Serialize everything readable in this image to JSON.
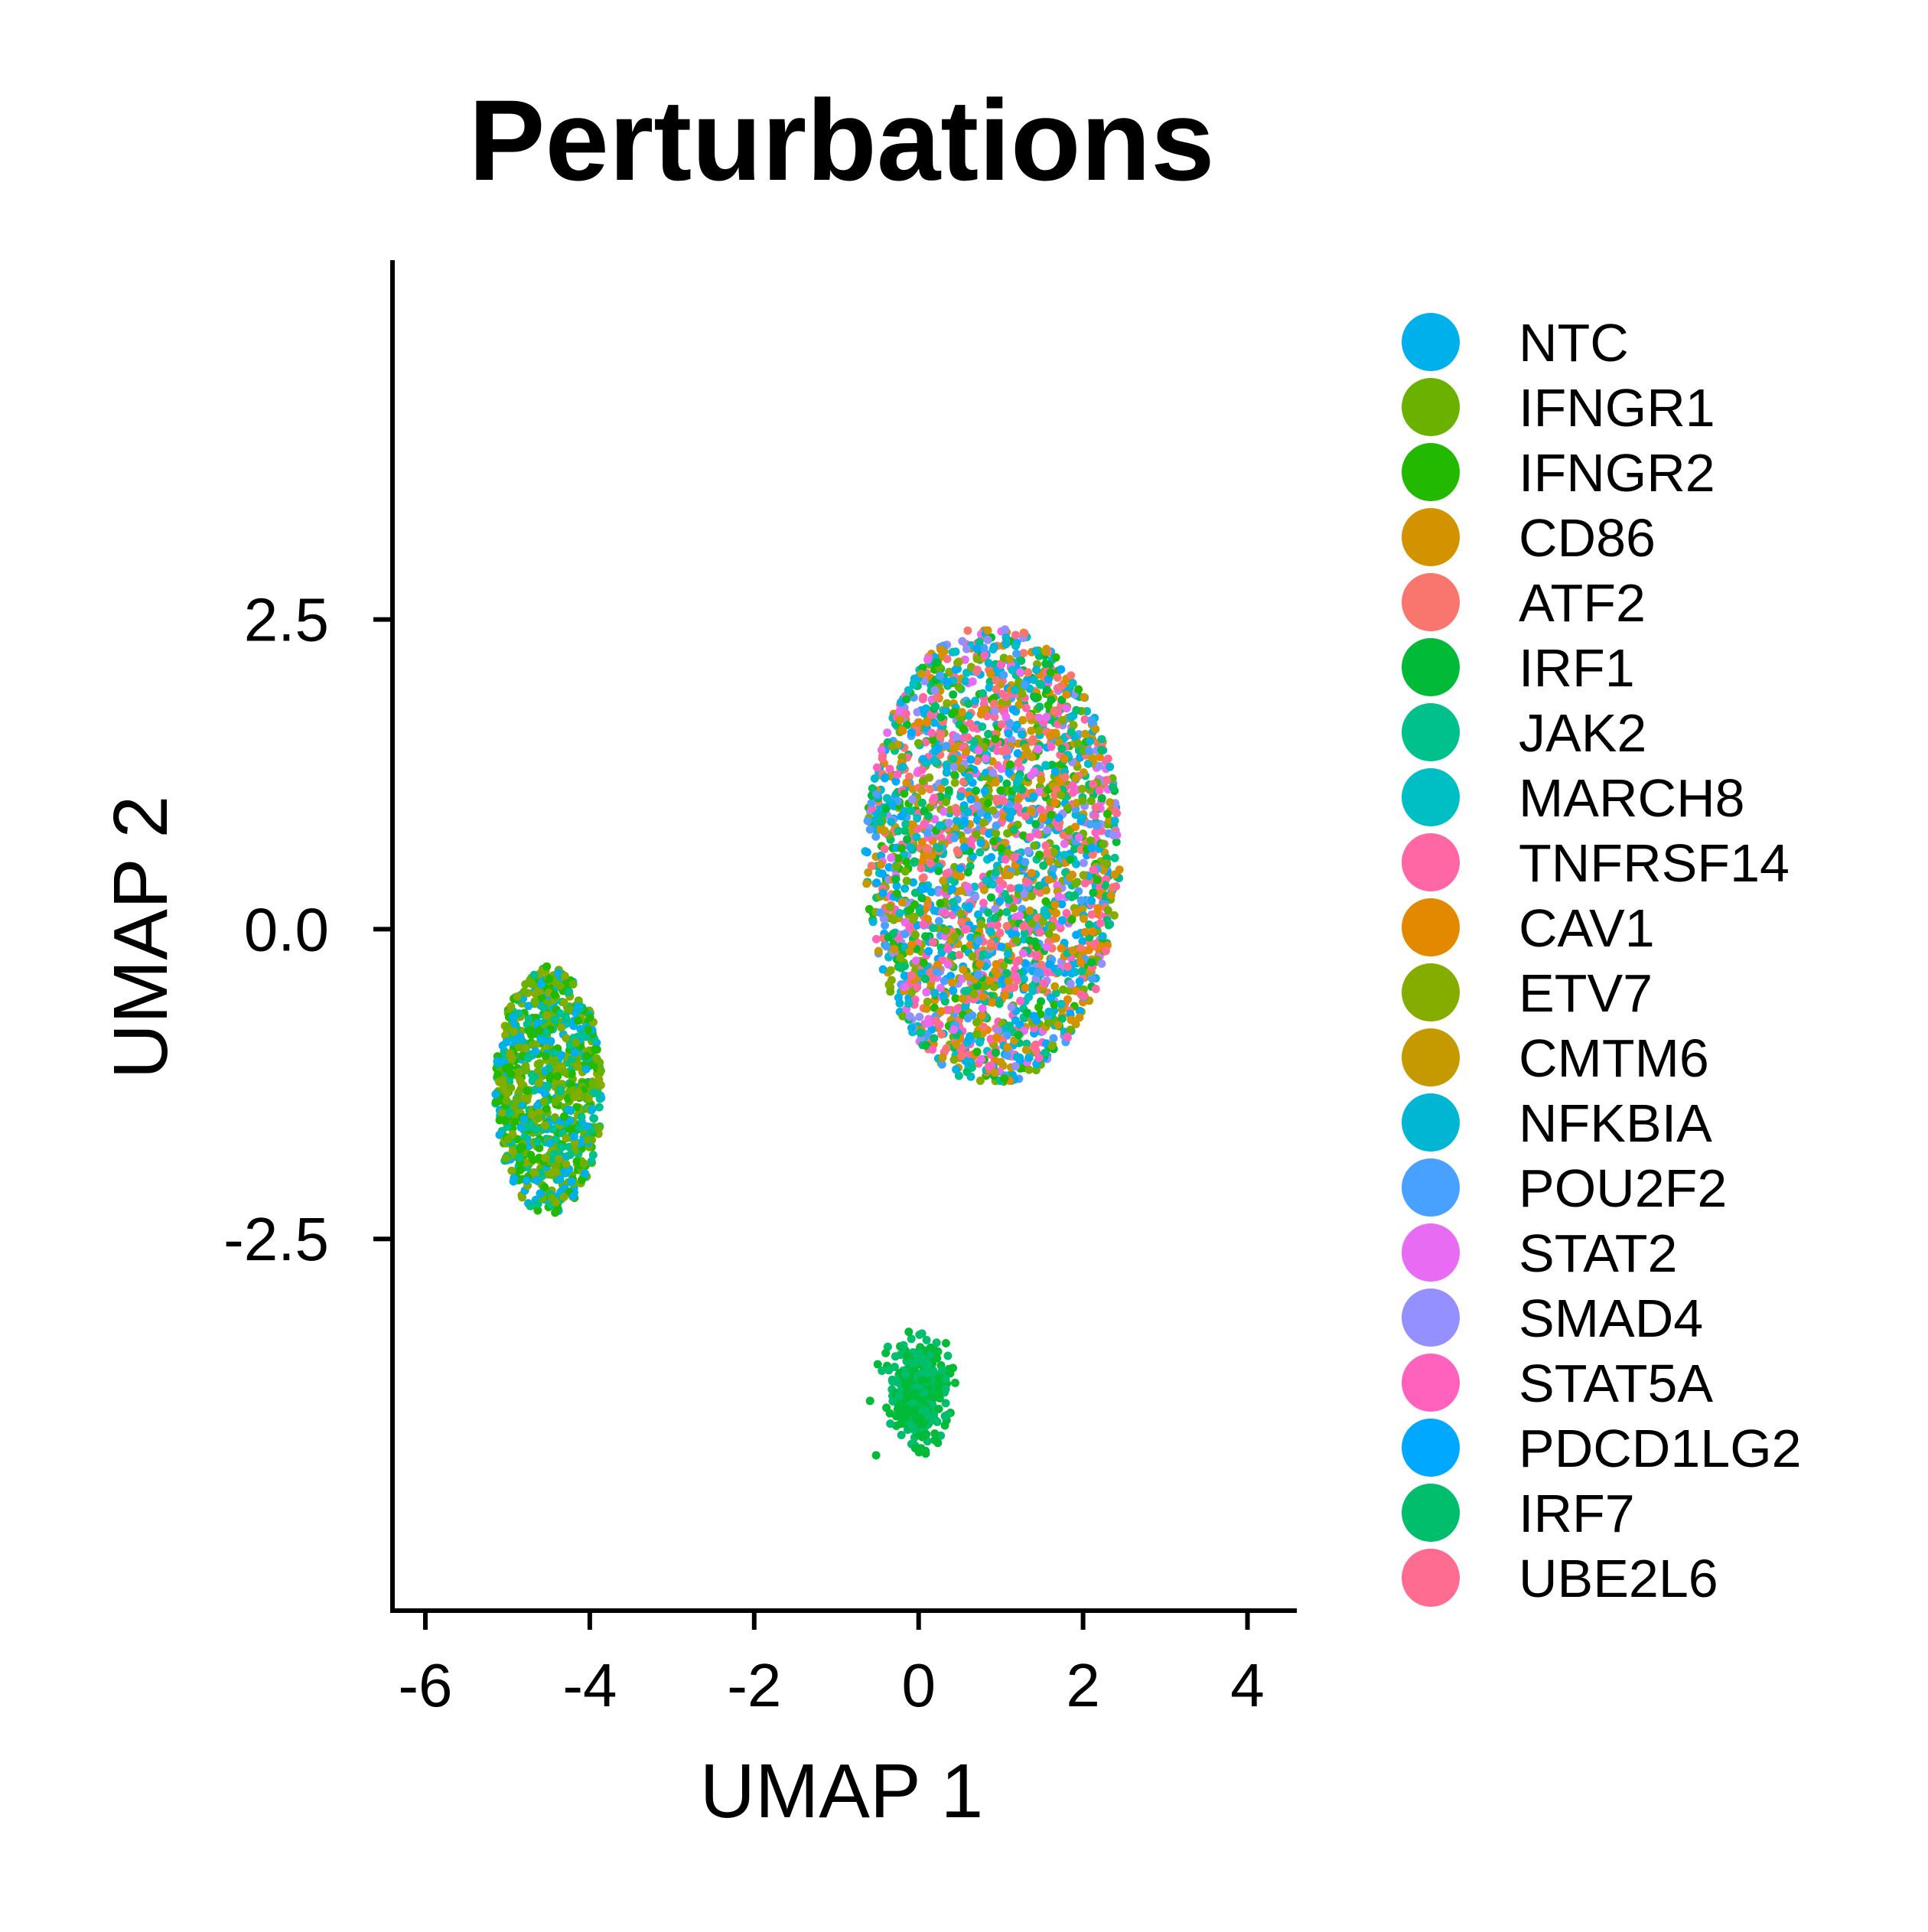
{
  "chart_data": {
    "type": "scatter",
    "title": "Perturbations",
    "xlabel": "UMAP 1",
    "ylabel": "UMAP 2",
    "xlim": [
      -6.4,
      4.6
    ],
    "ylim": [
      -5.5,
      5.4
    ],
    "xticks": [
      -6,
      -4,
      -2,
      0,
      2,
      4
    ],
    "xtick_labels": [
      "-6",
      "-4",
      "-2",
      "0",
      "2",
      "4"
    ],
    "yticks": [
      -2.5,
      0.0,
      2.5
    ],
    "ytick_labels": [
      "-2.5",
      "0.0",
      "2.5"
    ],
    "grid": false,
    "legend_position": "right",
    "series": [
      {
        "name": "NTC",
        "color": "#00B0EB"
      },
      {
        "name": "IFNGR1",
        "color": "#6BB100"
      },
      {
        "name": "IFNGR2",
        "color": "#22B900"
      },
      {
        "name": "CD86",
        "color": "#D39200"
      },
      {
        "name": "ATF2",
        "color": "#F8766D"
      },
      {
        "name": "IRF1",
        "color": "#00BA38"
      },
      {
        "name": "JAK2",
        "color": "#00C08B"
      },
      {
        "name": "MARCH8",
        "color": "#00BFC4"
      },
      {
        "name": "TNFRSF14",
        "color": "#FF67A4"
      },
      {
        "name": "CAV1",
        "color": "#E38900"
      },
      {
        "name": "ETV7",
        "color": "#85AD00"
      },
      {
        "name": "CMTM6",
        "color": "#C49A00"
      },
      {
        "name": "NFKBIA",
        "color": "#00B6D3"
      },
      {
        "name": "POU2F2",
        "color": "#49A1FF"
      },
      {
        "name": "STAT2",
        "color": "#E76BF3"
      },
      {
        "name": "SMAD4",
        "color": "#9590FF"
      },
      {
        "name": "STAT5A",
        "color": "#FF62BC"
      },
      {
        "name": "PDCD1LG2",
        "color": "#00A9FF"
      },
      {
        "name": "IRF7",
        "color": "#00BE6C"
      },
      {
        "name": "UBE2L6",
        "color": "#FF6C91"
      }
    ],
    "clusters": [
      {
        "label": "main",
        "center": [
          0.9,
          0.6
        ],
        "spread": [
          1.55,
          1.85
        ],
        "mix": "all"
      },
      {
        "label": "left",
        "center": [
          -4.5,
          -1.3
        ],
        "spread": [
          0.65,
          1.0
        ],
        "mix": [
          "IFNGR1",
          "IFNGR2",
          "ETV7",
          "JAK2",
          "NTC"
        ]
      },
      {
        "label": "bottom",
        "center": [
          0.0,
          -3.75
        ],
        "spread": [
          0.28,
          0.32
        ],
        "mix": [
          "IRF1",
          "IRF7"
        ]
      }
    ]
  }
}
